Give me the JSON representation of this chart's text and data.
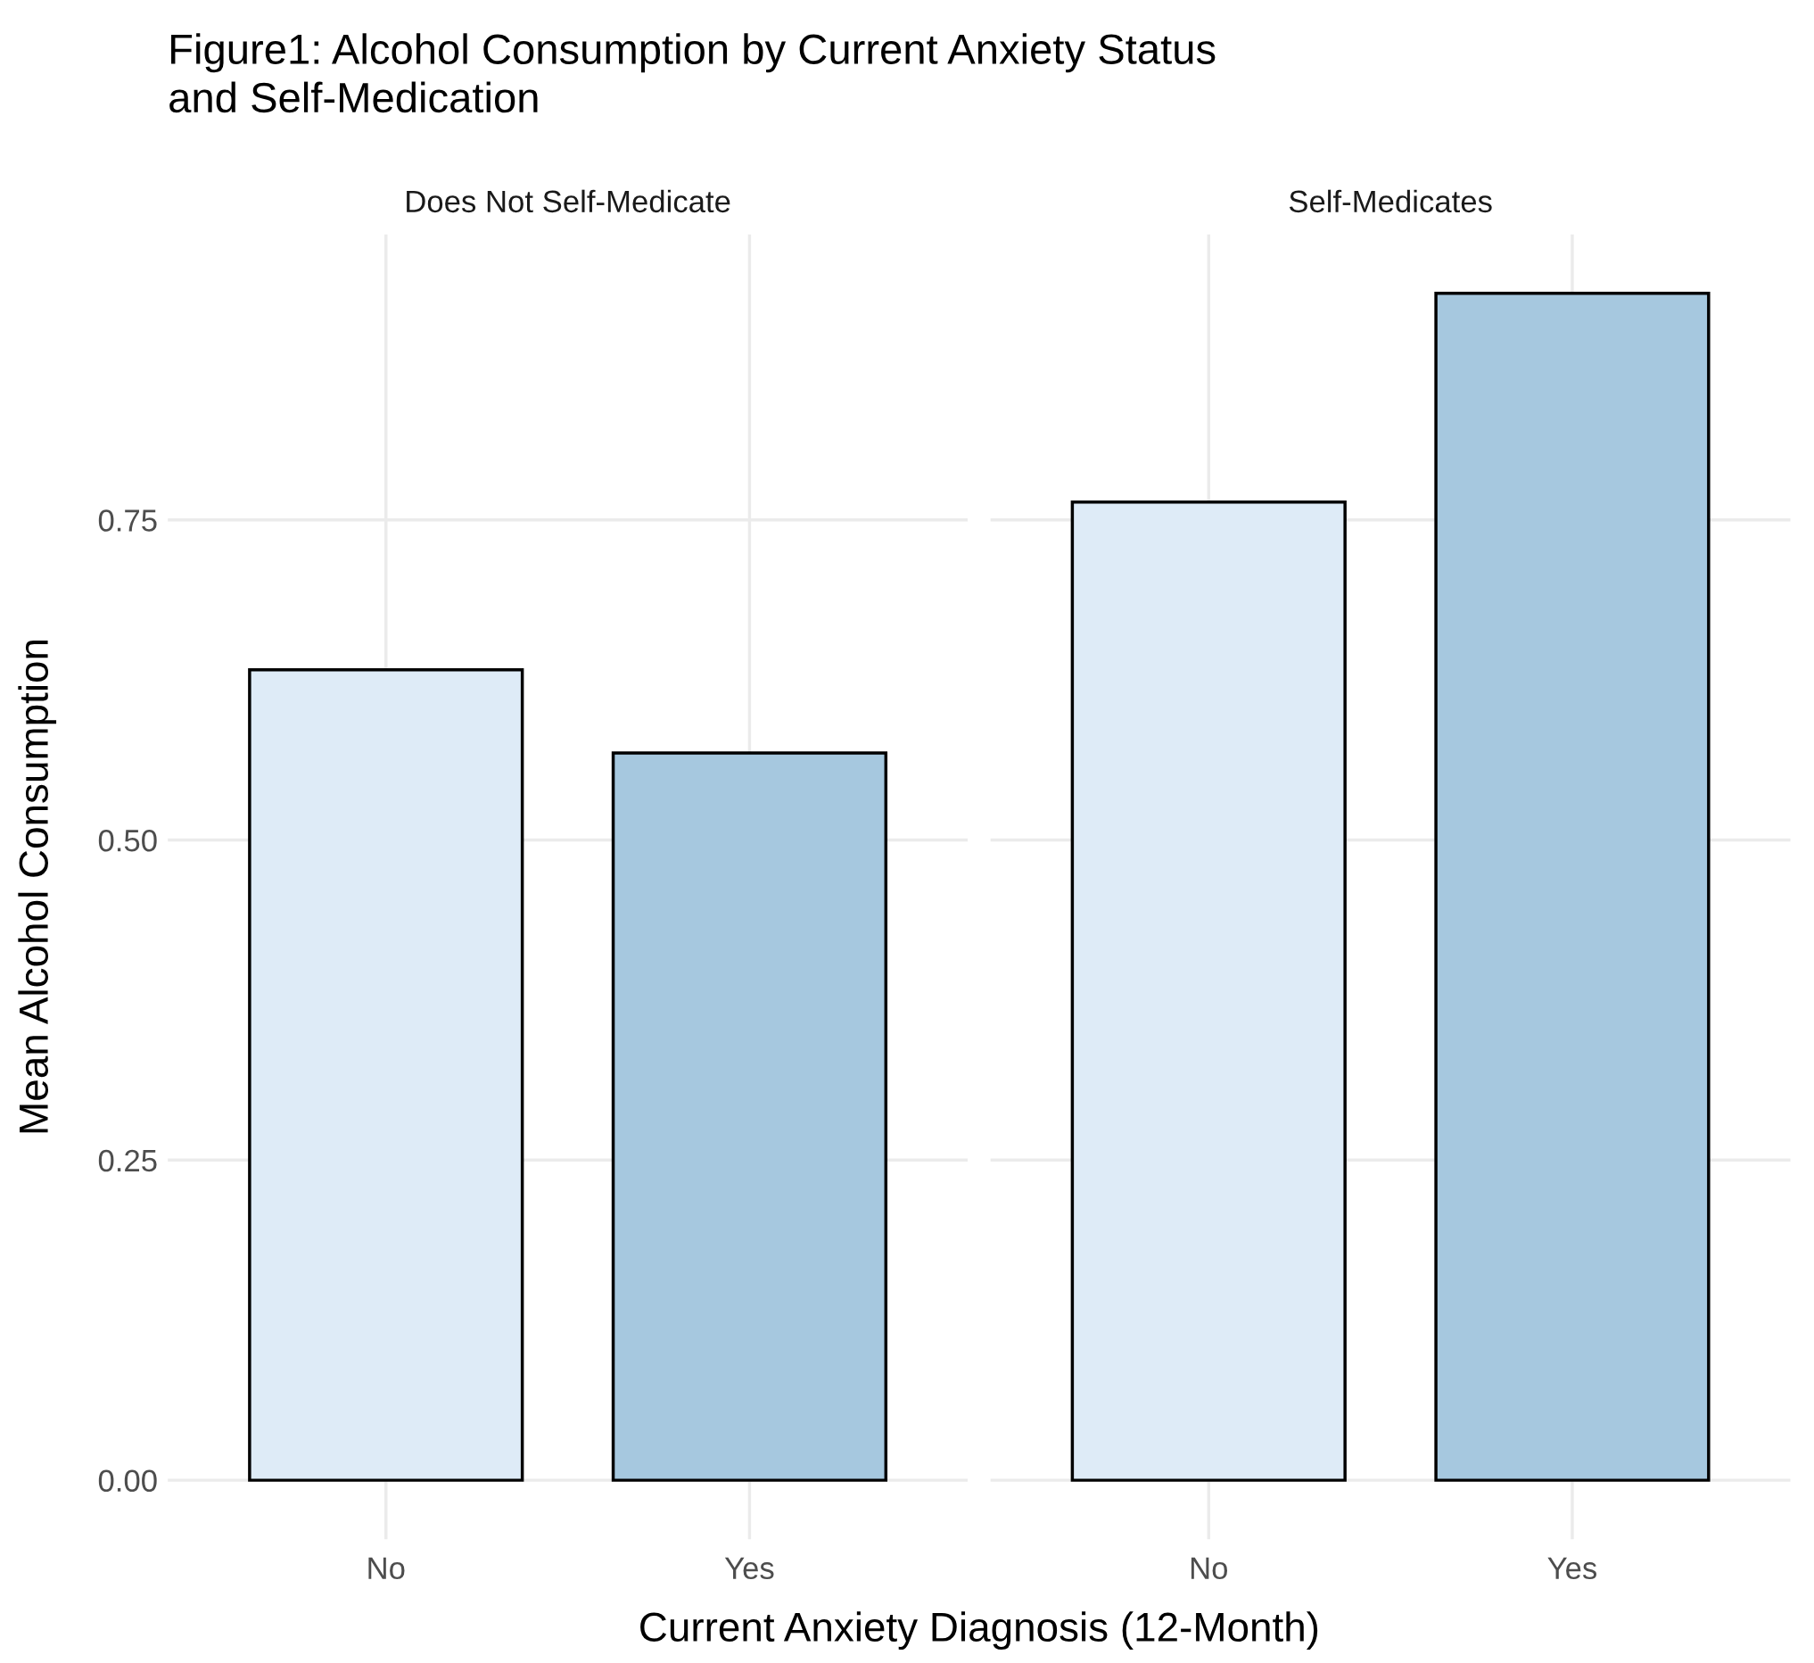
{
  "chart_data": [
    {
      "type": "bar",
      "title": "Figure1: Alcohol Consumption by Current Anxiety Status\nand Self-Medication",
      "subtitle": "Does Not Self-Medicate",
      "xlabel": "Current Anxiety Diagnosis (12-Month)",
      "ylabel": "Mean Alcohol Consumption",
      "categories": [
        "No",
        "Yes"
      ],
      "values": [
        0.633,
        0.568
      ],
      "colors": [
        "#deebf7",
        "#a6c8df"
      ],
      "ylim": [
        -0.046,
        0.973
      ],
      "yticks": [
        {
          "value": 0,
          "label": "0.00"
        },
        {
          "value": 0.25,
          "label": "0.25"
        },
        {
          "value": 0.5,
          "label": "0.50"
        },
        {
          "value": 0.75,
          "label": "0.75"
        }
      ],
      "grid": true,
      "legend": false
    },
    {
      "type": "bar",
      "subtitle": "Self-Medicates",
      "categories": [
        "No",
        "Yes"
      ],
      "values": [
        0.764,
        0.927
      ],
      "colors": [
        "#deebf7",
        "#a6c8df"
      ],
      "ylim": [
        -0.046,
        0.973
      ],
      "yticks": [
        {
          "value": 0,
          "label": null
        },
        {
          "value": 0.25,
          "label": null
        },
        {
          "value": 0.5,
          "label": null
        },
        {
          "value": 0.75,
          "label": null
        }
      ],
      "grid": true,
      "legend": false,
      "tick_labels": "x"
    }
  ]
}
